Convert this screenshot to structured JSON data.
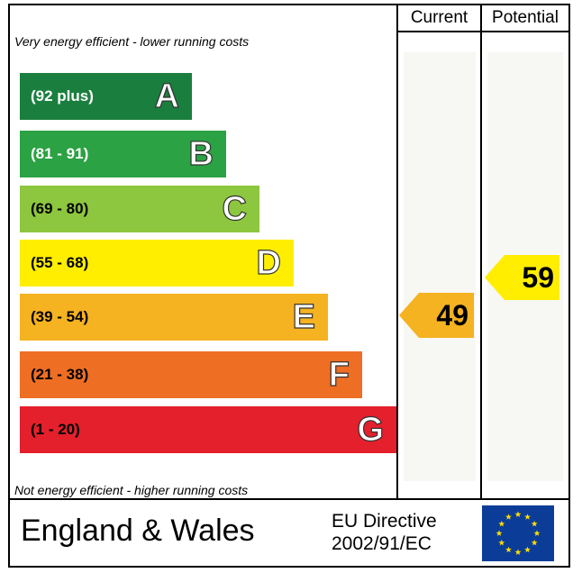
{
  "header": {
    "current_label": "Current",
    "potential_label": "Potential"
  },
  "top_caption": "Very energy efficient - lower running costs",
  "bottom_caption": "Not energy efficient - higher running costs",
  "bands": [
    {
      "letter": "A",
      "range": "(92 plus)",
      "color": "#1a7f3e"
    },
    {
      "letter": "B",
      "range": "(81 - 91)",
      "color": "#2ba243"
    },
    {
      "letter": "C",
      "range": "(69 - 80)",
      "color": "#8dc63f"
    },
    {
      "letter": "D",
      "range": "(55 - 68)",
      "color": "#ffee00"
    },
    {
      "letter": "E",
      "range": "(39 - 54)",
      "color": "#f5b221"
    },
    {
      "letter": "F",
      "range": "(21 - 38)",
      "color": "#ee6e24"
    },
    {
      "letter": "G",
      "range": "(1 - 20)",
      "color": "#e3202c"
    }
  ],
  "current": {
    "value": "49",
    "band": "E",
    "color": "#f5b221"
  },
  "potential": {
    "value": "59",
    "band": "D",
    "color": "#ffee00"
  },
  "footer": {
    "region": "England & Wales",
    "directive_line1": "EU Directive",
    "directive_line2": "2002/91/EC",
    "flag_color": "#0b3d98",
    "star_color": "#ffdd00"
  }
}
